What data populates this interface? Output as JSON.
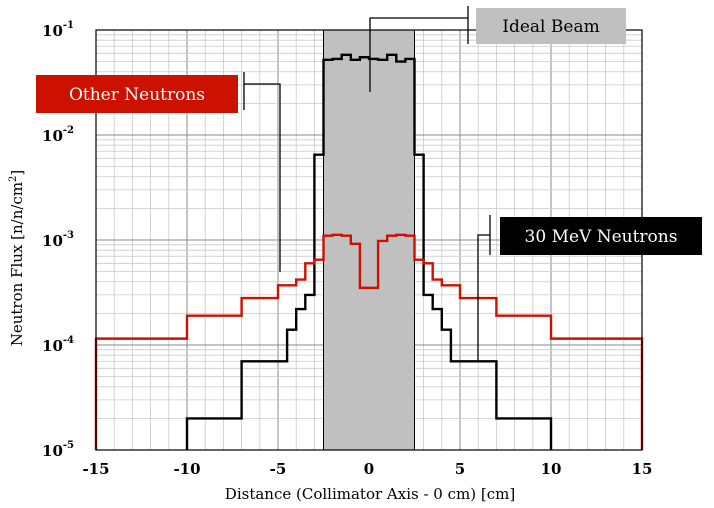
{
  "chart_data": {
    "type": "line",
    "xlabel": "Distance (Collimator Axis - 0 cm) [cm]",
    "ylabel": "Neutron Flux [n/n/cm²]",
    "ylabel_parts": {
      "main": "Neutron Flux [n/n/cm",
      "sup": "2",
      "end": "]"
    },
    "xlim": [
      -15,
      15
    ],
    "ylim": [
      1e-05,
      0.1
    ],
    "yscale": "log",
    "grid": true,
    "x_ticks": [
      "-15",
      "-10",
      "-5",
      "0",
      "5",
      "10",
      "15"
    ],
    "x_tick_values": [
      -15,
      -10,
      -5,
      0,
      5,
      10,
      15
    ],
    "y_ticks": [
      {
        "value": 0.1,
        "base": "10",
        "exp": "-1"
      },
      {
        "value": 0.01,
        "base": "10",
        "exp": "-2"
      },
      {
        "value": 0.001,
        "base": "10",
        "exp": "-3"
      },
      {
        "value": 0.0001,
        "base": "10",
        "exp": "-4"
      },
      {
        "value": 1e-05,
        "base": "10",
        "exp": "-5"
      }
    ],
    "ideal_beam": {
      "x_range": [
        -2.5,
        2.5
      ],
      "color": "#c0c0c0"
    },
    "series": [
      {
        "color": "#000000",
        "edges": [
          -10,
          -7,
          -5,
          -4.5,
          -4,
          -3.5,
          -3,
          -2.5,
          -2,
          -1.5,
          -1,
          -0.5,
          0,
          0.5,
          1,
          1.5,
          2,
          2.5,
          3,
          3.5,
          4,
          4.5,
          5,
          7,
          10
        ],
        "values": [
          2e-05,
          7e-05,
          7e-05,
          0.00014,
          0.00022,
          0.0003,
          0.0065,
          0.052,
          0.053,
          0.058,
          0.052,
          0.055,
          0.053,
          0.052,
          0.058,
          0.05,
          0.053,
          0.0065,
          0.0003,
          0.00022,
          0.00014,
          7e-05,
          7e-05,
          2e-05
        ]
      },
      {
        "color": "#cc1100",
        "edges": [
          -15,
          -10,
          -7,
          -5,
          -4,
          -3.5,
          -3,
          -2.5,
          -2,
          -1.5,
          -1,
          -0.5,
          0,
          0.5,
          1,
          1.5,
          2,
          2.5,
          3,
          3.5,
          4,
          5,
          7,
          10,
          15
        ],
        "values": [
          0.000115,
          0.00019,
          0.00028,
          0.00037,
          0.00042,
          0.0006,
          0.00065,
          0.0011,
          0.00112,
          0.0011,
          0.00092,
          0.00035,
          0.00035,
          0.00098,
          0.0011,
          0.00112,
          0.0011,
          0.00065,
          0.0006,
          0.00042,
          0.00037,
          0.00028,
          0.00019,
          0.000115
        ]
      }
    ],
    "annotations": [
      {
        "text": "Ideal Beam",
        "bg": "#c0c0c0",
        "fg": "#000000"
      },
      {
        "text": "Other Neutrons",
        "bg": "#cc1100",
        "fg": "#ffffff"
      },
      {
        "text": "30 MeV Neutrons",
        "bg": "#000000",
        "fg": "#ffffff"
      }
    ]
  }
}
